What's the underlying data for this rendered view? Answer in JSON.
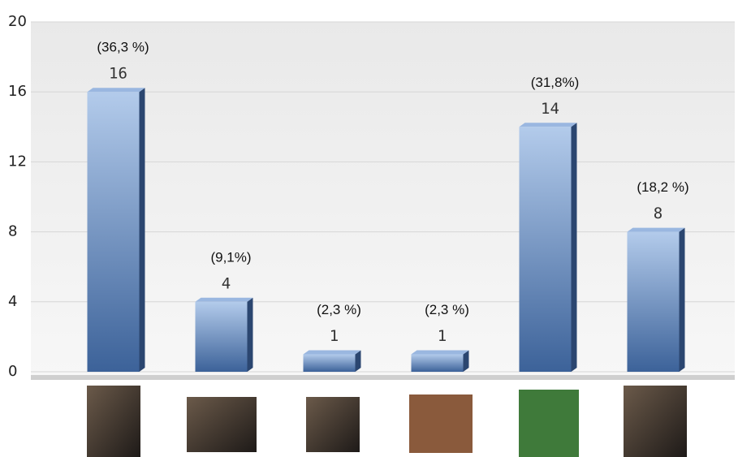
{
  "chart_data": {
    "type": "bar",
    "categories": [
      null,
      null,
      null,
      null,
      null,
      null
    ],
    "values": [
      16,
      4,
      1,
      1,
      14,
      8
    ],
    "annotations": [
      "(36,3 %)",
      "(9,1%)",
      "(2,3 %)",
      "(2,3 %)",
      "(31,8%)",
      "(18,2 %)"
    ],
    "color": "#6f8fc0",
    "ylim": [
      0,
      20
    ],
    "yticks": [
      0,
      4,
      8,
      12,
      16,
      20
    ],
    "grid": true
  }
}
